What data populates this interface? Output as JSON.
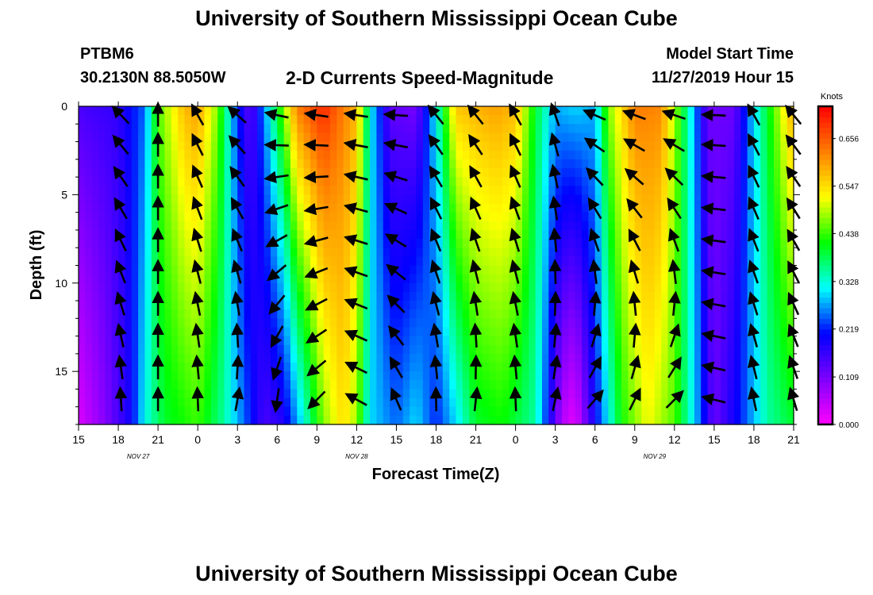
{
  "header": {
    "title": "University of Southern Mississippi Ocean Cube",
    "station_id": "PTBM6",
    "coordinates": "30.2130N 88.5050W",
    "subtitle": "2-D Currents Speed-Magnitude",
    "model_start_label": "Model Start Time",
    "model_start_value": "11/27/2019 Hour 15"
  },
  "footer": {
    "title": "University of Southern Mississippi Ocean Cube"
  },
  "chart_data": {
    "type": "heatmap",
    "title": "2-D Currents Speed-Magnitude",
    "xlabel": "Forecast Time(Z)",
    "ylabel": "Depth (ft)",
    "x_unit": "forecast hour from 11/27 15Z",
    "xlim": [
      0,
      54
    ],
    "ylim": [
      0,
      18
    ],
    "x_ticks": [
      {
        "hour": 0,
        "label": "15"
      },
      {
        "hour": 3,
        "label": "18"
      },
      {
        "hour": 6,
        "label": "21"
      },
      {
        "hour": 9,
        "label": "0"
      },
      {
        "hour": 12,
        "label": "3"
      },
      {
        "hour": 15,
        "label": "6"
      },
      {
        "hour": 18,
        "label": "9"
      },
      {
        "hour": 21,
        "label": "12"
      },
      {
        "hour": 24,
        "label": "15"
      },
      {
        "hour": 27,
        "label": "18"
      },
      {
        "hour": 30,
        "label": "21"
      },
      {
        "hour": 33,
        "label": "0"
      },
      {
        "hour": 36,
        "label": "3"
      },
      {
        "hour": 39,
        "label": "6"
      },
      {
        "hour": 42,
        "label": "9"
      },
      {
        "hour": 45,
        "label": "12"
      },
      {
        "hour": 48,
        "label": "15"
      },
      {
        "hour": 51,
        "label": "18"
      },
      {
        "hour": 54,
        "label": "21"
      }
    ],
    "date_labels": [
      {
        "hour": 4.5,
        "label": "NOV 27"
      },
      {
        "hour": 21,
        "label": "NOV 28"
      },
      {
        "hour": 43.5,
        "label": "NOV 29"
      }
    ],
    "y_ticks": [
      {
        "depth": 0,
        "label": "0"
      },
      {
        "depth": 5,
        "label": "5"
      },
      {
        "depth": 10,
        "label": "10"
      },
      {
        "depth": 15,
        "label": "15"
      }
    ],
    "colorbar": {
      "unit": "Knots",
      "min": 0.0,
      "max": 0.73,
      "tick_labels": [
        "0.000",
        "0.109",
        "0.219",
        "0.328",
        "0.438",
        "0.547",
        "0.656"
      ],
      "tick_values": [
        0.0,
        0.109,
        0.219,
        0.328,
        0.438,
        0.547,
        0.656
      ],
      "colors": [
        "#ff00ff",
        "#7f00ff",
        "#0000ff",
        "#00ffff",
        "#00ff00",
        "#ffff00",
        "#ff7f00",
        "#ff0000"
      ]
    },
    "surface_profile": [
      {
        "hour": 0,
        "speed": 0.15
      },
      {
        "hour": 3,
        "speed": 0.17
      },
      {
        "hour": 5,
        "speed": 0.25
      },
      {
        "hour": 6,
        "speed": 0.45
      },
      {
        "hour": 8,
        "speed": 0.58
      },
      {
        "hour": 9,
        "speed": 0.6
      },
      {
        "hour": 10.5,
        "speed": 0.47
      },
      {
        "hour": 12,
        "speed": 0.22
      },
      {
        "hour": 13,
        "speed": 0.13
      },
      {
        "hour": 15,
        "speed": 0.4
      },
      {
        "hour": 16.5,
        "speed": 0.63
      },
      {
        "hour": 18.5,
        "speed": 0.7
      },
      {
        "hour": 21,
        "speed": 0.58
      },
      {
        "hour": 22,
        "speed": 0.32
      },
      {
        "hour": 23.5,
        "speed": 0.13
      },
      {
        "hour": 25.5,
        "speed": 0.11
      },
      {
        "hour": 27,
        "speed": 0.32
      },
      {
        "hour": 28.5,
        "speed": 0.57
      },
      {
        "hour": 31.5,
        "speed": 0.6
      },
      {
        "hour": 33,
        "speed": 0.58
      },
      {
        "hour": 34.5,
        "speed": 0.4
      },
      {
        "hour": 36,
        "speed": 0.28
      },
      {
        "hour": 37.5,
        "speed": 0.3
      },
      {
        "hour": 39,
        "speed": 0.28
      },
      {
        "hour": 40,
        "speed": 0.47
      },
      {
        "hour": 42,
        "speed": 0.63
      },
      {
        "hour": 44,
        "speed": 0.62
      },
      {
        "hour": 46,
        "speed": 0.35
      },
      {
        "hour": 47.5,
        "speed": 0.12
      },
      {
        "hour": 49.5,
        "speed": 0.12
      },
      {
        "hour": 51,
        "speed": 0.3
      },
      {
        "hour": 52.5,
        "speed": 0.45
      },
      {
        "hour": 54,
        "speed": 0.6
      }
    ],
    "bottom_profile": [
      {
        "hour": 0,
        "speed": 0.03
      },
      {
        "hour": 2,
        "speed": 0.1
      },
      {
        "hour": 4,
        "speed": 0.2
      },
      {
        "hour": 5,
        "speed": 0.32
      },
      {
        "hour": 6.5,
        "speed": 0.4
      },
      {
        "hour": 9,
        "speed": 0.44
      },
      {
        "hour": 11,
        "speed": 0.35
      },
      {
        "hour": 12.5,
        "speed": 0.25
      },
      {
        "hour": 14,
        "speed": 0.15
      },
      {
        "hour": 15.5,
        "speed": 0.18
      },
      {
        "hour": 17,
        "speed": 0.32
      },
      {
        "hour": 18.5,
        "speed": 0.47
      },
      {
        "hour": 20,
        "speed": 0.55
      },
      {
        "hour": 21,
        "speed": 0.48
      },
      {
        "hour": 22,
        "speed": 0.3
      },
      {
        "hour": 24,
        "speed": 0.25
      },
      {
        "hour": 25.5,
        "speed": 0.3
      },
      {
        "hour": 27,
        "speed": 0.22
      },
      {
        "hour": 28.5,
        "speed": 0.3
      },
      {
        "hour": 30,
        "speed": 0.4
      },
      {
        "hour": 32,
        "speed": 0.42
      },
      {
        "hour": 34.5,
        "speed": 0.35
      },
      {
        "hour": 36.5,
        "speed": 0.06
      },
      {
        "hour": 37.5,
        "speed": 0.02
      },
      {
        "hour": 39,
        "speed": 0.2
      },
      {
        "hour": 41,
        "speed": 0.42
      },
      {
        "hour": 43,
        "speed": 0.52
      },
      {
        "hour": 45,
        "speed": 0.45
      },
      {
        "hour": 46.5,
        "speed": 0.3
      },
      {
        "hour": 48,
        "speed": 0.12
      },
      {
        "hour": 50,
        "speed": 0.22
      },
      {
        "hour": 52,
        "speed": 0.35
      },
      {
        "hour": 54,
        "speed": 0.4
      }
    ],
    "vectors": {
      "columns": [
        {
          "hour": 3.2,
          "surface_dir_deg": 135,
          "bottom_dir_deg": 90
        },
        {
          "hour": 6.0,
          "surface_dir_deg": 90,
          "bottom_dir_deg": 90
        },
        {
          "hour": 9.0,
          "surface_dir_deg": 120,
          "bottom_dir_deg": 90
        },
        {
          "hour": 12.0,
          "surface_dir_deg": 140,
          "bottom_dir_deg": 75
        },
        {
          "hour": 15.0,
          "surface_dir_deg": 165,
          "bottom_dir_deg": 270
        },
        {
          "hour": 18.0,
          "surface_dir_deg": 170,
          "bottom_dir_deg": 230
        },
        {
          "hour": 21.0,
          "surface_dir_deg": 172,
          "bottom_dir_deg": 150
        },
        {
          "hour": 24.0,
          "surface_dir_deg": 178,
          "bottom_dir_deg": 108
        },
        {
          "hour": 27.0,
          "surface_dir_deg": 130,
          "bottom_dir_deg": 88
        },
        {
          "hour": 30.0,
          "surface_dir_deg": 130,
          "bottom_dir_deg": 80
        },
        {
          "hour": 33.0,
          "surface_dir_deg": 120,
          "bottom_dir_deg": 90
        },
        {
          "hour": 36.0,
          "surface_dir_deg": 110,
          "bottom_dir_deg": 75
        },
        {
          "hour": 39.0,
          "surface_dir_deg": 160,
          "bottom_dir_deg": 40
        },
        {
          "hour": 42.0,
          "surface_dir_deg": 163,
          "bottom_dir_deg": 55
        },
        {
          "hour": 45.0,
          "surface_dir_deg": 165,
          "bottom_dir_deg": 35
        },
        {
          "hour": 48.0,
          "surface_dir_deg": 178,
          "bottom_dir_deg": 165
        },
        {
          "hour": 51.0,
          "surface_dir_deg": 120,
          "bottom_dir_deg": 100
        },
        {
          "hour": 54.0,
          "surface_dir_deg": 130,
          "bottom_dir_deg": 105
        }
      ],
      "depths": [
        0.5,
        2.2,
        4.0,
        5.8,
        7.6,
        9.4,
        11.2,
        13.0,
        14.8,
        16.6
      ]
    }
  }
}
